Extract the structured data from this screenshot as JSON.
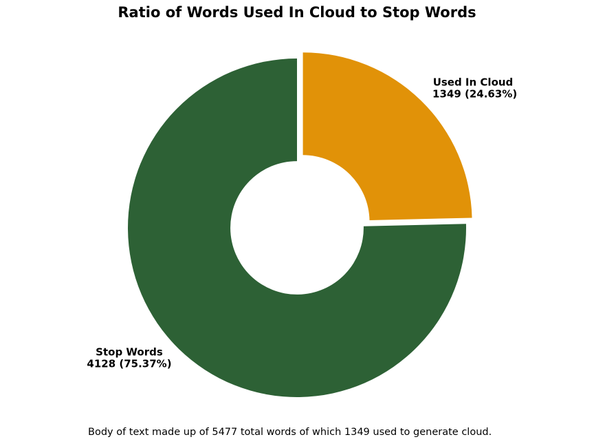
{
  "figure": {
    "background_color": "#FFFFFF"
  },
  "chart_data": {
    "type": "pie",
    "subtype": "donut",
    "title": "Ratio of Words Used In Cloud to Stop Words",
    "caption": "Body of text made up of 5477 total words of which 1349 used to generate cloud.",
    "total": 5477,
    "categories": [
      "Used In Cloud",
      "Stop Words"
    ],
    "values": [
      1349,
      4128
    ],
    "percentages": [
      24.63,
      75.37
    ],
    "colors": [
      "#E19208",
      "#2D6135"
    ],
    "start_angle": 90,
    "clockwise": true,
    "hole_ratio": 0.394,
    "legend": "none",
    "grid": false,
    "slices": [
      {
        "label": "Used In Cloud",
        "value": 1349,
        "pct": 24.63,
        "color": "#E19208",
        "explode": 0.05,
        "annotation_lines": [
          "Used In Cloud",
          " 1349 (24.63%)"
        ]
      },
      {
        "label": "Stop Words",
        "value": 4128,
        "pct": 75.37,
        "color": "#2D6135",
        "explode": 0,
        "annotation_lines": [
          "Stop Words",
          "4128 (75.37%)"
        ]
      }
    ]
  }
}
